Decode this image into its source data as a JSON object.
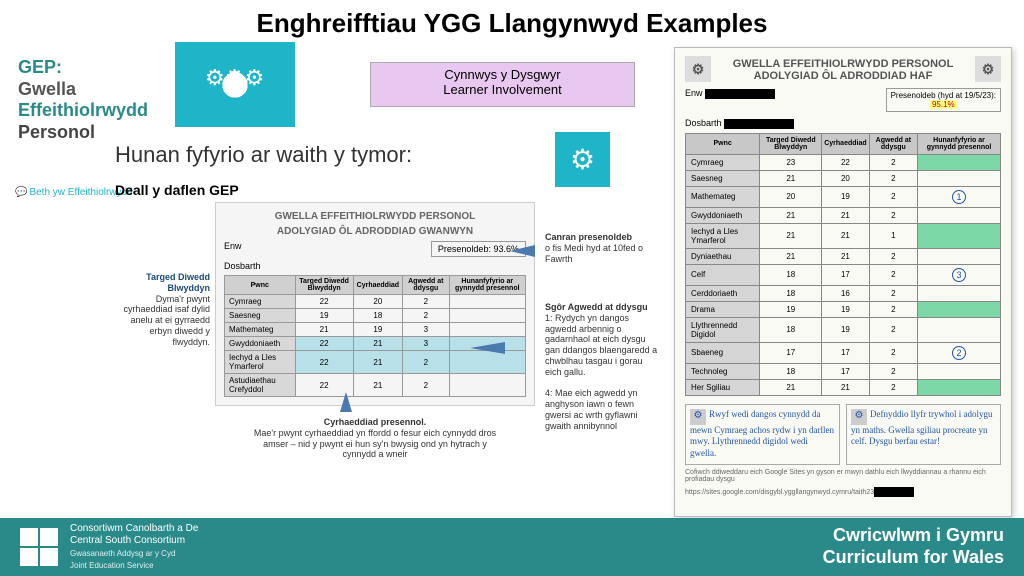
{
  "title": "Enghreifftiau YGG Llangynwyd Examples",
  "gep": {
    "l1": "GEP:",
    "l2": "Gwella",
    "l3": "Effeithiolrwydd",
    "l4": "Personol"
  },
  "speech": "Beth yw Effeithiolrwydd",
  "purple": {
    "l1": "Cynnwys y Dysgwyr",
    "l2": "Learner Involvement"
  },
  "hunan": "Hunan fyfyrio ar waith y tymor:",
  "deall": "Deall y daflen GEP",
  "doc1": {
    "hdr1": "GWELLA EFFEITHIOLRWYDD PERSONOL",
    "hdr2": "ADOLYGIAD ÔL ADRODDIAD GWANWYN",
    "enw": "Enw",
    "dosbarth": "Dosbarth",
    "pres_label": "Presenoldeb:",
    "pres_val": "93.6%",
    "cols": [
      "Pwnc",
      "Targed Diwedd Blwyddyn",
      "Cyrhaeddiad",
      "Agwedd at ddysgu",
      "Hunanfyfyrio ar gynnydd presennol"
    ],
    "rows": [
      [
        "Cymraeg",
        "22",
        "20",
        "2",
        ""
      ],
      [
        "Saesneg",
        "19",
        "18",
        "2",
        ""
      ],
      [
        "Mathemateg",
        "21",
        "19",
        "3",
        ""
      ],
      [
        "Gwyddoniaeth",
        "22",
        "21",
        "3",
        ""
      ],
      [
        "Iechyd a Lles Ymarferol",
        "22",
        "21",
        "2",
        ""
      ],
      [
        "Astudiaethau Crefyddol",
        "22",
        "21",
        "2",
        ""
      ]
    ]
  },
  "a_left": {
    "b": "Targed Diwedd Blwyddyn",
    "t": "Dyma'r pwynt cyrhaeddiad isaf dylid anelu at ei gyrraedd erbyn diwedd y flwyddyn."
  },
  "a_r1": {
    "b": "Canran presenoldeb",
    "t": " o fis Medi hyd at 10fed o Fawrth"
  },
  "a_r2": {
    "b": "Sgôr Agwedd at ddysgu",
    "t1": "1: Rydych yn dangos agwedd arbennig o gadarnhaol at eich dysgu gan ddangos blaengaredd a chwblhau tasgau i gorau eich gallu.",
    "t2": "4: Mae eich agwedd yn anghyson iawn o fewn gwersi ac wrth gyflawni gwaith annibynnol"
  },
  "a_bot": {
    "b": "Cyrhaeddiad presennol.",
    "t": "Mae'r pwynt cyrhaeddiad yn ffordd o fesur eich cynnydd dros amser – nid y pwynt ei hun sy'n bwysig ond yn hytrach y cynnydd a wneir"
  },
  "doc2": {
    "hdr1": "GWELLA EFFEITHIOLRWYDD PERSONOL",
    "hdr2": "ADOLYGIAD ÔL ADRODDIAD HAF",
    "enw": "Enw",
    "dosbarth": "Dosbarth",
    "pres_label": "Presenoldeb (hyd at 19/5/23):",
    "pres_val": "95.1%",
    "cols": [
      "Pwnc",
      "Targed Diwedd Blwyddyn",
      "Cyrhaeddiad",
      "Agwedd at ddysgu",
      "Hunanfyfyrio ar gynnydd presennol"
    ],
    "rows": [
      [
        "Cymraeg",
        "23",
        "22",
        "2",
        "hl"
      ],
      [
        "Saesneg",
        "21",
        "20",
        "2",
        ""
      ],
      [
        "Mathemateg",
        "20",
        "19",
        "2",
        "c1"
      ],
      [
        "Gwyddoniaeth",
        "21",
        "21",
        "2",
        ""
      ],
      [
        "Iechyd a Lles Ymarferol",
        "21",
        "21",
        "1",
        "hl"
      ],
      [
        "Dyniaethau",
        "21",
        "21",
        "2",
        ""
      ],
      [
        "Celf",
        "18",
        "17",
        "2",
        "c3"
      ],
      [
        "Cerddoriaeth",
        "18",
        "16",
        "2",
        ""
      ],
      [
        "Drama",
        "19",
        "19",
        "2",
        "hl"
      ],
      [
        "Llythrennedd Digidol",
        "18",
        "19",
        "2",
        ""
      ],
      [
        "Sbaeneg",
        "17",
        "17",
        "2",
        "c2"
      ],
      [
        "Technoleg",
        "18",
        "17",
        "2",
        ""
      ],
      [
        "Her Sgiliau",
        "21",
        "21",
        "2",
        "hl"
      ]
    ],
    "hw1": "Rwyf wedi dangos cynnydd da mewn Cymraeg achos rydw i yn darllen mwy. Llythrennedd digidol wedi gwella.",
    "hw2": "Defnyddio llyfr trywhol i adolygu yn maths. Gwella sgiliau procreate yn celf. Dysgu berfau estar!",
    "foot": "Cofiwch ddiweddaru eich Google Sites yn gyson er mwyn dathlu eich llwyddiannau a rhannu eich profiadau dysgu",
    "url": "https://sites.google.com/disgybl.yggllangynwyd.cymru/taith23"
  },
  "footer": {
    "org1": "Consortiwm Canolbarth a De",
    "org2": "Central South Consortium",
    "sub1": "Gwasanaeth Addysg ar y Cyd",
    "sub2": "Joint Education Service",
    "r1": "Cwricwlwm i Gymru",
    "r2": "Curriculum for Wales"
  }
}
